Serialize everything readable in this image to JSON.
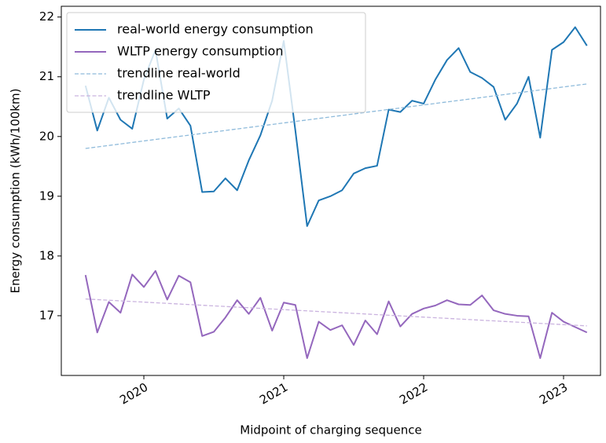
{
  "chart_data": {
    "type": "line",
    "xlabel": "Midpoint of charging sequence",
    "ylabel": "Energy consumption (kWh/100km)",
    "xlim": [
      2019.41,
      2023.264
    ],
    "xticks": [
      2020,
      2021,
      2022,
      2023
    ],
    "ylim": [
      16.0,
      22.18
    ],
    "yticks": [
      17,
      18,
      19,
      20,
      21,
      22
    ],
    "legend": "upper left",
    "x": [
      2019.583,
      2019.667,
      2019.75,
      2019.833,
      2019.917,
      2020,
      2020.083,
      2020.167,
      2020.25,
      2020.333,
      2020.417,
      2020.5,
      2020.583,
      2020.667,
      2020.75,
      2020.833,
      2020.917,
      2021,
      2021.083,
      2021.167,
      2021.25,
      2021.333,
      2021.417,
      2021.5,
      2021.583,
      2021.667,
      2021.75,
      2021.833,
      2021.917,
      2022,
      2022.083,
      2022.167,
      2022.25,
      2022.333,
      2022.417,
      2022.5,
      2022.583,
      2022.667,
      2022.75,
      2022.833,
      2022.917,
      2023,
      2023.083,
      2023.167
    ],
    "series": [
      {
        "name": "real-world energy consumption",
        "color": "#1f77b4",
        "linestyle": "solid",
        "values": [
          20.85,
          20.1,
          20.65,
          20.28,
          20.13,
          20.95,
          21.45,
          20.3,
          20.47,
          20.18,
          19.07,
          19.08,
          19.3,
          19.1,
          19.6,
          20.02,
          20.6,
          21.6,
          20.1,
          18.5,
          18.93,
          19.0,
          19.1,
          19.38,
          19.47,
          19.51,
          20.45,
          20.41,
          20.6,
          20.55,
          20.95,
          21.28,
          21.48,
          21.08,
          20.98,
          20.83,
          20.28,
          20.55,
          21.0,
          19.98,
          21.45,
          21.58,
          21.83,
          21.52
        ]
      },
      {
        "name": "WLTP energy consumption",
        "color": "#9467bd",
        "linestyle": "solid",
        "values": [
          17.68,
          16.72,
          17.23,
          17.05,
          17.69,
          17.48,
          17.75,
          17.27,
          17.67,
          17.56,
          16.66,
          16.73,
          16.97,
          17.26,
          17.03,
          17.3,
          16.75,
          17.22,
          17.18,
          16.29,
          16.9,
          16.76,
          16.84,
          16.51,
          16.92,
          16.69,
          17.24,
          16.82,
          17.03,
          17.12,
          17.17,
          17.26,
          17.19,
          17.18,
          17.34,
          17.09,
          17.03,
          17.0,
          16.99,
          16.29,
          17.05,
          16.9,
          16.81,
          16.72
        ]
      },
      {
        "name": "trendline real-world",
        "color": "#8fbbdb",
        "linestyle": "dashed",
        "x": [
          2019.583,
          2023.167
        ],
        "values": [
          19.8,
          20.88
        ]
      },
      {
        "name": "trendline WLTP",
        "color": "#cab3df",
        "linestyle": "dashed",
        "x": [
          2019.583,
          2023.167
        ],
        "values": [
          17.28,
          16.83
        ]
      }
    ]
  }
}
